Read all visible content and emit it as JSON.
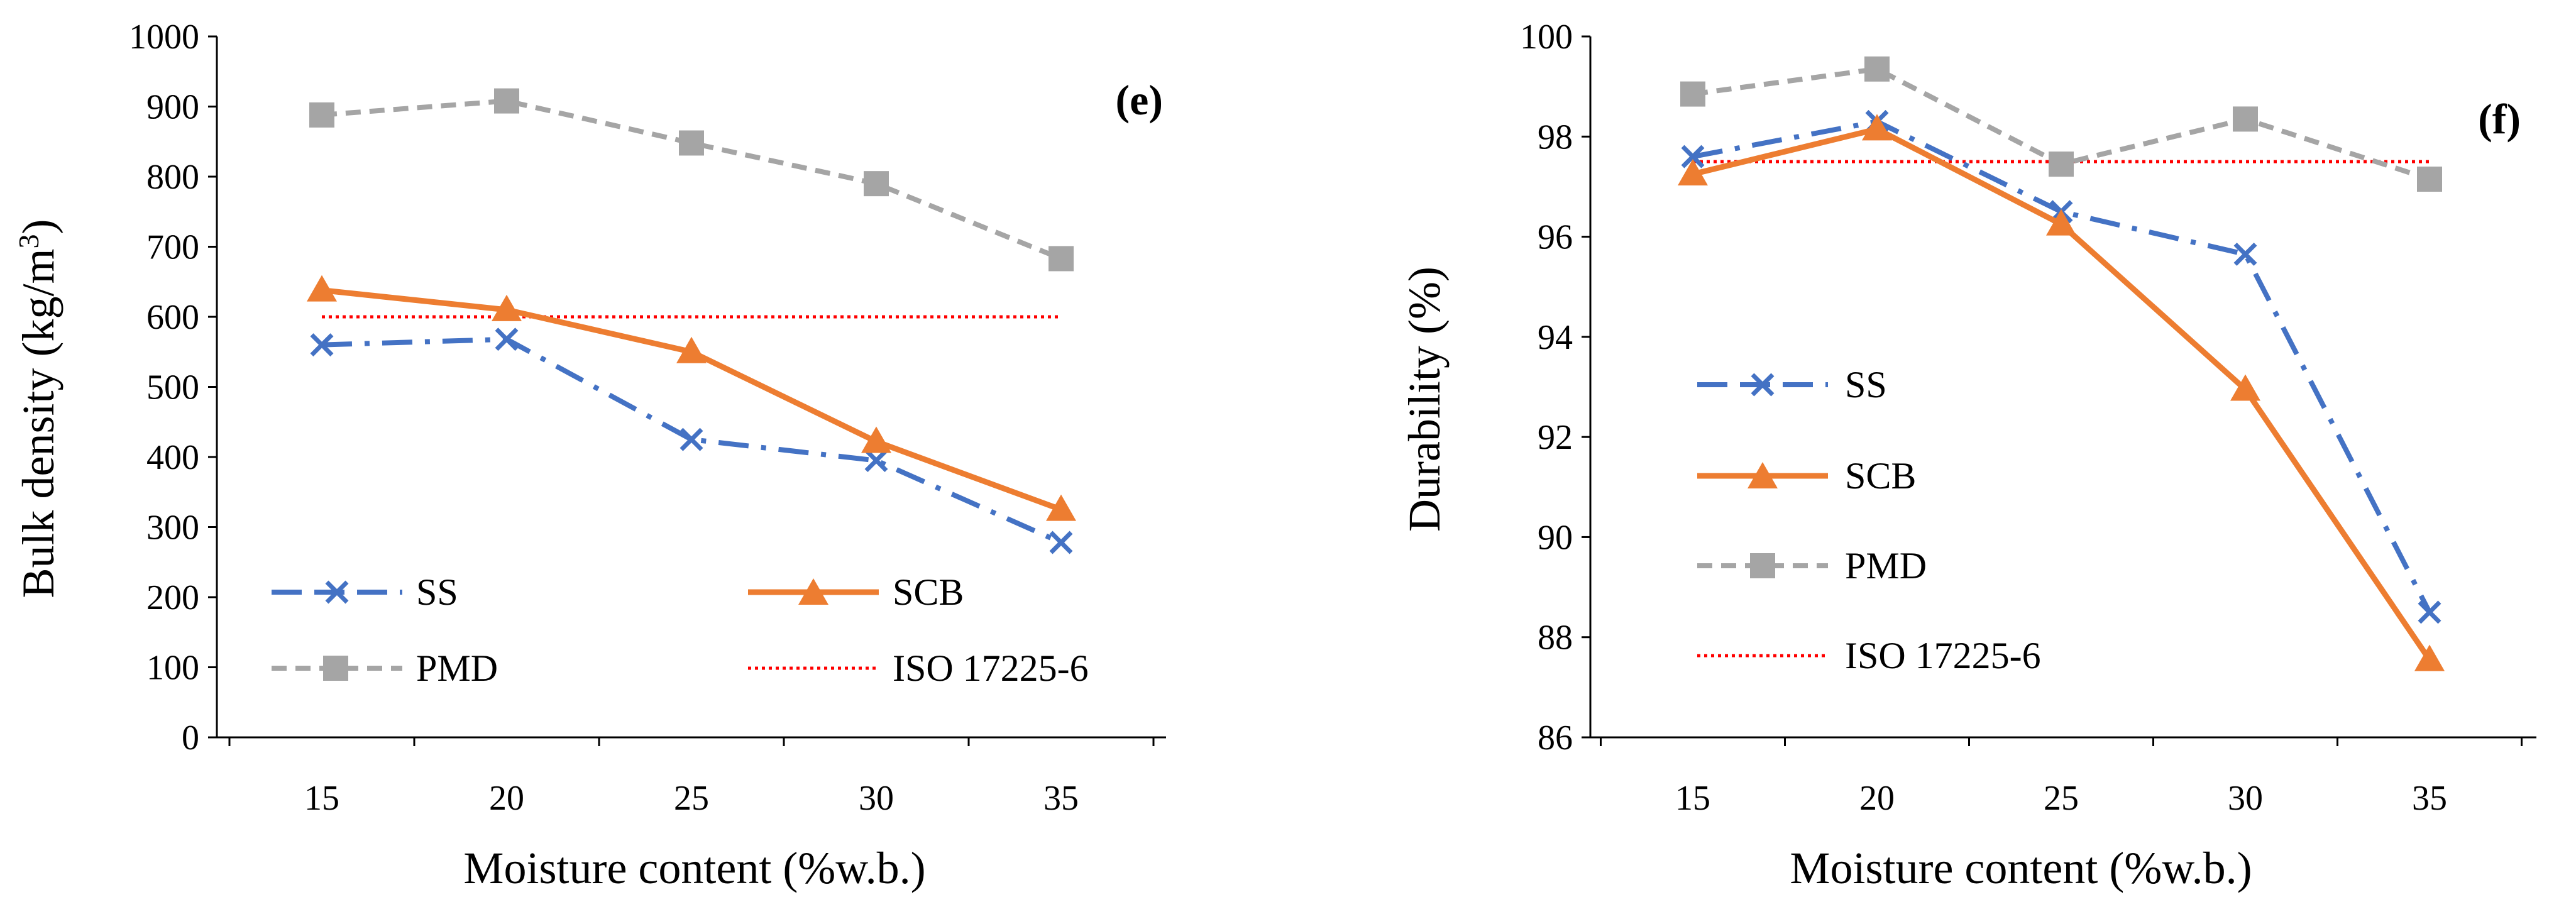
{
  "colors": {
    "ss": "#4472C4",
    "scb": "#ED7D31",
    "pmd": "#A5A5A5",
    "iso": "#FF0000",
    "axis": "#000000"
  },
  "chart_data": [
    {
      "type": "line",
      "panel_label": "(e)",
      "xlabel": "Moisture content (%w.b.)",
      "ylabel_main": "Bulk density (kg/m",
      "ylabel_sup": "3",
      "ylabel_end": ")",
      "categories": [
        "15",
        "20",
        "25",
        "30",
        "35"
      ],
      "ylim": [
        0,
        1000
      ],
      "yticks": [
        "0",
        "100",
        "200",
        "300",
        "400",
        "500",
        "600",
        "700",
        "800",
        "900",
        "1000"
      ],
      "legend": [
        "SS",
        "SCB",
        "PMD",
        "ISO 17225-6"
      ],
      "series": [
        {
          "name": "SS",
          "marker": "x",
          "values": [
            560,
            568,
            425,
            395,
            278
          ]
        },
        {
          "name": "SCB",
          "marker": "triangle",
          "values": [
            638,
            610,
            550,
            422,
            325
          ]
        },
        {
          "name": "PMD",
          "marker": "square",
          "values": [
            888,
            908,
            848,
            790,
            683
          ]
        },
        {
          "name": "ISO 17225-6",
          "marker": "none",
          "values": [
            600,
            600,
            600,
            600,
            600
          ]
        }
      ]
    },
    {
      "type": "line",
      "panel_label": "(f)",
      "xlabel": "Moisture content (%w.b.)",
      "ylabel_main": "Durability (%)",
      "categories": [
        "15",
        "20",
        "25",
        "30",
        "35"
      ],
      "ylim": [
        86,
        100
      ],
      "yticks": [
        "86",
        "88",
        "90",
        "92",
        "94",
        "96",
        "98",
        "100"
      ],
      "legend": [
        "SS",
        "SCB",
        "PMD",
        "ISO 17225-6"
      ],
      "series": [
        {
          "name": "SS",
          "marker": "x",
          "values": [
            97.6,
            98.3,
            96.5,
            95.65,
            88.5
          ]
        },
        {
          "name": "SCB",
          "marker": "triangle",
          "values": [
            97.25,
            98.15,
            96.25,
            92.95,
            87.55
          ]
        },
        {
          "name": "PMD",
          "marker": "square",
          "values": [
            98.85,
            99.35,
            97.45,
            98.35,
            97.15
          ]
        },
        {
          "name": "ISO 17225-6",
          "marker": "none",
          "values": [
            97.5,
            97.5,
            97.5,
            97.5,
            97.5
          ]
        }
      ]
    }
  ]
}
